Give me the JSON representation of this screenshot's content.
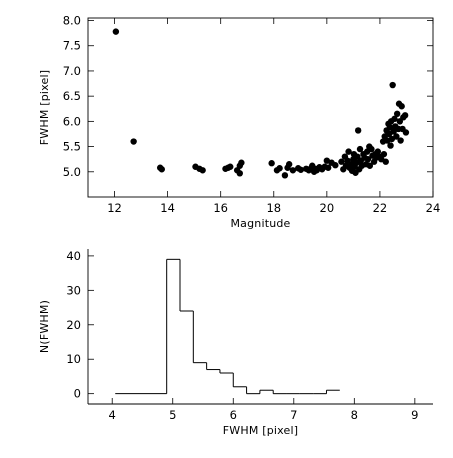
{
  "chart_data": [
    {
      "type": "scatter",
      "title": "",
      "xlabel": "Magnitude",
      "ylabel": "FWHM [pixel]",
      "xlim": [
        11,
        24
      ],
      "ylim": [
        4.5,
        8.05
      ],
      "xticks": [
        12,
        14,
        16,
        18,
        20,
        22,
        24
      ],
      "yticks": [
        5.0,
        5.5,
        6.0,
        6.5,
        7.0,
        7.5,
        8.0
      ],
      "ytick_labels": [
        "5.0",
        "5.5",
        "6.0",
        "6.5",
        "7.0",
        "7.5",
        "8.0"
      ],
      "grid": false,
      "marker_color": "#000000",
      "points": [
        [
          12.05,
          7.78
        ],
        [
          12.72,
          5.6
        ],
        [
          13.72,
          5.08
        ],
        [
          13.78,
          5.05
        ],
        [
          15.05,
          5.1
        ],
        [
          15.2,
          5.06
        ],
        [
          15.32,
          5.03
        ],
        [
          16.18,
          5.06
        ],
        [
          16.28,
          5.08
        ],
        [
          16.36,
          5.1
        ],
        [
          16.62,
          5.03
        ],
        [
          16.72,
          5.12
        ],
        [
          16.78,
          5.18
        ],
        [
          16.72,
          4.97
        ],
        [
          17.92,
          5.17
        ],
        [
          18.12,
          5.03
        ],
        [
          18.22,
          5.07
        ],
        [
          18.42,
          4.93
        ],
        [
          18.52,
          5.08
        ],
        [
          18.58,
          5.15
        ],
        [
          18.72,
          5.03
        ],
        [
          18.92,
          5.07
        ],
        [
          19.02,
          5.04
        ],
        [
          19.22,
          5.06
        ],
        [
          19.32,
          5.03
        ],
        [
          19.42,
          5.08
        ],
        [
          19.45,
          5.12
        ],
        [
          19.52,
          5.0
        ],
        [
          19.56,
          5.06
        ],
        [
          19.62,
          5.03
        ],
        [
          19.72,
          5.09
        ],
        [
          19.82,
          5.05
        ],
        [
          19.92,
          5.1
        ],
        [
          20.0,
          5.22
        ],
        [
          20.05,
          5.08
        ],
        [
          20.18,
          5.18
        ],
        [
          20.32,
          5.13
        ],
        [
          20.55,
          5.2
        ],
        [
          20.62,
          5.05
        ],
        [
          20.68,
          5.3
        ],
        [
          20.72,
          5.12
        ],
        [
          20.78,
          5.22
        ],
        [
          20.82,
          5.4
        ],
        [
          20.86,
          5.08
        ],
        [
          20.92,
          5.15
        ],
        [
          20.95,
          5.02
        ],
        [
          21.0,
          5.25
        ],
        [
          21.02,
          5.35
        ],
        [
          21.05,
          5.1
        ],
        [
          21.08,
          4.98
        ],
        [
          21.12,
          5.18
        ],
        [
          21.15,
          5.3
        ],
        [
          21.18,
          5.82
        ],
        [
          21.22,
          5.05
        ],
        [
          21.25,
          5.45
        ],
        [
          21.28,
          5.22
        ],
        [
          21.32,
          5.12
        ],
        [
          21.38,
          5.35
        ],
        [
          21.42,
          5.28
        ],
        [
          21.48,
          5.15
        ],
        [
          21.52,
          5.4
        ],
        [
          21.55,
          5.25
        ],
        [
          21.6,
          5.5
        ],
        [
          21.62,
          5.12
        ],
        [
          21.68,
          5.45
        ],
        [
          21.72,
          5.32
        ],
        [
          21.78,
          5.2
        ],
        [
          21.82,
          5.35
        ],
        [
          21.86,
          5.28
        ],
        [
          21.92,
          5.4
        ],
        [
          21.98,
          5.3
        ],
        [
          22.05,
          5.25
        ],
        [
          22.12,
          5.6
        ],
        [
          22.15,
          5.35
        ],
        [
          22.18,
          5.7
        ],
        [
          22.22,
          5.2
        ],
        [
          22.25,
          5.82
        ],
        [
          22.28,
          5.62
        ],
        [
          22.32,
          5.95
        ],
        [
          22.35,
          5.75
        ],
        [
          22.38,
          5.88
        ],
        [
          22.4,
          5.52
        ],
        [
          22.42,
          6.0
        ],
        [
          22.45,
          5.65
        ],
        [
          22.48,
          6.72
        ],
        [
          22.52,
          5.8
        ],
        [
          22.55,
          6.05
        ],
        [
          22.58,
          5.9
        ],
        [
          22.62,
          5.7
        ],
        [
          22.65,
          6.15
        ],
        [
          22.7,
          5.85
        ],
        [
          22.72,
          6.35
        ],
        [
          22.75,
          6.0
        ],
        [
          22.78,
          5.62
        ],
        [
          22.82,
          6.3
        ],
        [
          22.85,
          5.85
        ],
        [
          22.88,
          6.08
        ],
        [
          22.95,
          6.12
        ],
        [
          22.98,
          5.78
        ]
      ]
    },
    {
      "type": "histogram",
      "title": "",
      "xlabel": "FWHM [pixel]",
      "ylabel": "N(FWHM)",
      "xlim": [
        3.6,
        9.3
      ],
      "ylim": [
        -3,
        42
      ],
      "xticks": [
        4,
        5,
        6,
        7,
        8,
        9
      ],
      "yticks": [
        0,
        10,
        20,
        30,
        40
      ],
      "grid": false,
      "line_color": "#000000",
      "bin_edges": [
        4.05,
        4.9,
        5.12,
        5.34,
        5.56,
        5.78,
        6.0,
        6.22,
        6.44,
        6.66,
        6.88,
        7.1,
        7.32,
        7.54,
        7.76
      ],
      "counts": [
        0,
        39,
        24,
        9,
        7,
        6,
        2,
        0,
        1,
        0,
        0,
        0,
        0,
        1
      ]
    }
  ]
}
